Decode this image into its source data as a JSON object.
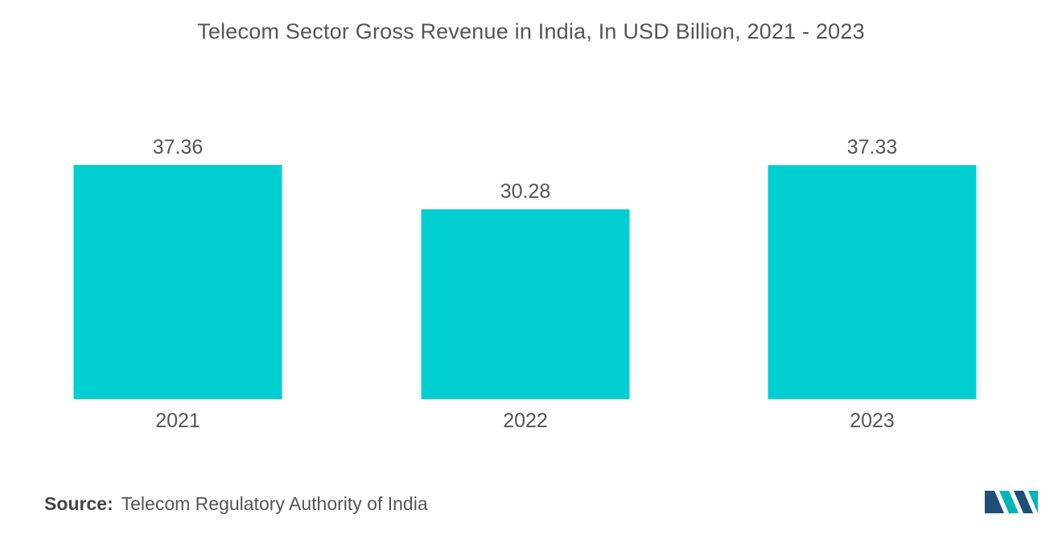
{
  "chart_data": {
    "type": "bar",
    "title": "Telecom Sector Gross Revenue in India, In USD Billion, 2021 - 2023",
    "categories": [
      "2021",
      "2022",
      "2023"
    ],
    "values": [
      37.36,
      30.28,
      37.33
    ],
    "value_labels": [
      "37.36",
      "30.28",
      "37.33"
    ],
    "xlabel": "",
    "ylabel": "",
    "ylim": [
      0,
      37.36
    ],
    "grid": false,
    "bar_color": "#00CED1"
  },
  "source": {
    "label": "Source:",
    "text": "Telecom Regulatory Authority of India"
  },
  "colors": {
    "text": "#555555",
    "logo_primary": "#1F4E79",
    "logo_secondary": "#00B3B8"
  },
  "logo": {
    "icon": "mordor-intelligence-logo-icon"
  }
}
